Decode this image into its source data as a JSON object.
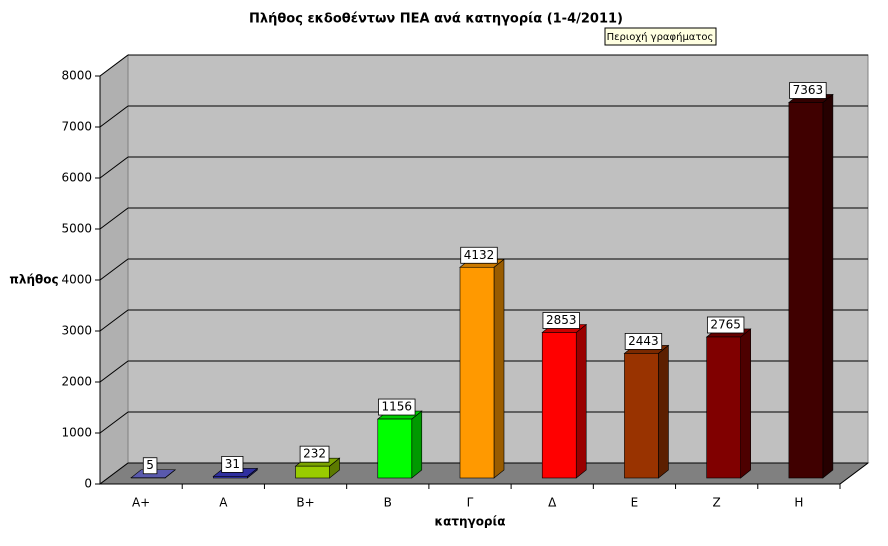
{
  "chart_data": {
    "type": "bar3d",
    "title": "Πλήθος εκδοθέντων ΠΕΑ ανά κατηγορία (1-4/2011)",
    "tooltip": "Περιοχή γραφήματος",
    "y_label": "πλήθος",
    "x_label": "κατηγορία",
    "categories": [
      "A+",
      "A",
      "B+",
      "B",
      "Γ",
      "Δ",
      "E",
      "Z",
      "H"
    ],
    "series": [
      {
        "values": [
          5,
          31,
          232,
          1156,
          4132,
          2853,
          2443,
          2765,
          7363
        ],
        "colors": [
          "#6f6fd8",
          "#3b3bc8",
          "#99cc00",
          "#00ff00",
          "#ff9900",
          "#ff0000",
          "#993300",
          "#800000",
          "#400000"
        ]
      }
    ],
    "ylim": [
      0,
      8000
    ],
    "yticks": [
      0,
      1000,
      2000,
      3000,
      4000,
      5000,
      6000,
      7000,
      8000
    ],
    "grid": true
  }
}
